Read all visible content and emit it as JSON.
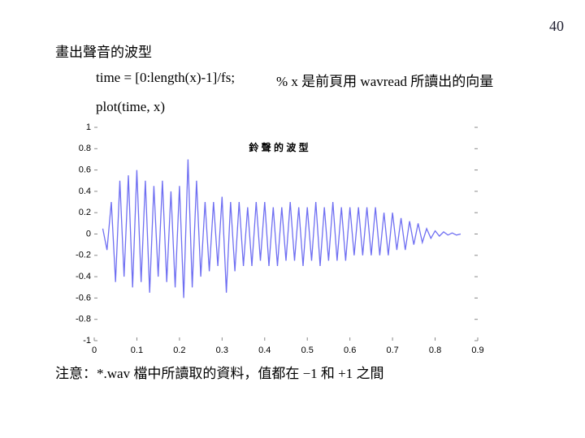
{
  "page_number": "40",
  "heading": "畫出聲音的波型",
  "code": [
    "time = [0:length(x)-1]/fs;",
    "% x 是前頁用 wavread 所讀出的向量",
    "plot(time, x)"
  ],
  "note": "注意：*.wav 檔中所讀取的資料，值都在 −1 和 +1 之間",
  "chart_data": {
    "type": "line",
    "title": "鈴 聲 的 波 型",
    "xlim": [
      0,
      0.9
    ],
    "ylim": [
      -1,
      1
    ],
    "xticks": [
      0,
      0.1,
      0.2,
      0.3,
      0.4,
      0.5,
      0.6,
      0.7,
      0.8,
      0.9
    ],
    "yticks": [
      1,
      0.8,
      0.6,
      0.4,
      0.2,
      0,
      -0.2,
      -0.4,
      -0.6,
      -0.8,
      -1
    ],
    "series": [
      {
        "color": "#6f6ff2",
        "x": [
          0.02,
          0.03,
          0.04,
          0.05,
          0.06,
          0.07,
          0.08,
          0.09,
          0.1,
          0.11,
          0.12,
          0.13,
          0.14,
          0.15,
          0.16,
          0.17,
          0.18,
          0.19,
          0.2,
          0.21,
          0.22,
          0.23,
          0.24,
          0.25,
          0.26,
          0.27,
          0.28,
          0.29,
          0.3,
          0.31,
          0.32,
          0.33,
          0.34,
          0.35,
          0.36,
          0.37,
          0.38,
          0.39,
          0.4,
          0.41,
          0.42,
          0.43,
          0.44,
          0.45,
          0.46,
          0.47,
          0.48,
          0.49,
          0.5,
          0.51,
          0.52,
          0.53,
          0.54,
          0.55,
          0.56,
          0.57,
          0.58,
          0.59,
          0.6,
          0.61,
          0.62,
          0.63,
          0.64,
          0.65,
          0.66,
          0.67,
          0.68,
          0.69,
          0.7,
          0.71,
          0.72,
          0.73,
          0.74,
          0.75,
          0.76,
          0.77,
          0.78,
          0.79,
          0.8,
          0.81,
          0.82,
          0.83,
          0.84,
          0.85,
          0.86
        ],
        "values": [
          0.05,
          -0.15,
          0.3,
          -0.45,
          0.5,
          -0.4,
          0.55,
          -0.5,
          0.6,
          -0.45,
          0.5,
          -0.55,
          0.45,
          -0.4,
          0.5,
          -0.45,
          0.4,
          -0.5,
          0.45,
          -0.6,
          0.7,
          -0.5,
          0.5,
          -0.4,
          0.3,
          -0.35,
          0.3,
          -0.3,
          0.35,
          -0.55,
          0.3,
          -0.35,
          0.3,
          -0.3,
          0.25,
          -0.3,
          0.3,
          -0.25,
          0.3,
          -0.3,
          0.25,
          -0.3,
          0.25,
          -0.25,
          0.3,
          -0.25,
          0.25,
          -0.3,
          0.25,
          -0.25,
          0.3,
          -0.3,
          0.25,
          -0.25,
          0.3,
          -0.25,
          0.25,
          -0.25,
          0.25,
          -0.2,
          0.25,
          -0.2,
          0.25,
          -0.2,
          0.25,
          -0.2,
          0.2,
          -0.2,
          0.2,
          -0.15,
          0.15,
          -0.15,
          0.12,
          -0.1,
          0.1,
          -0.08,
          0.05,
          -0.04,
          0.03,
          -0.02,
          0.02,
          -0.01,
          0.01,
          -0.01,
          0
        ]
      }
    ]
  }
}
